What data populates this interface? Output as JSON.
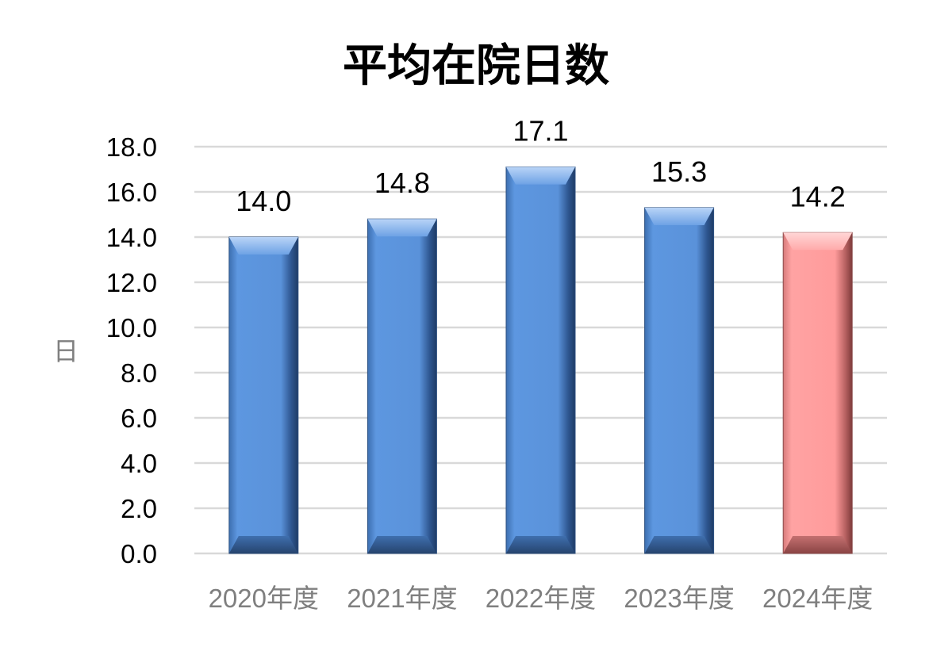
{
  "chart_data": {
    "type": "bar",
    "title": "平均在院日数",
    "ylabel": "日",
    "xlabel": "",
    "categories": [
      "2020年度",
      "2021年度",
      "2022年度",
      "2023年度",
      "2024年度"
    ],
    "values": [
      14.0,
      14.8,
      17.1,
      15.3,
      14.2
    ],
    "ylim": [
      0,
      18
    ],
    "yticks": [
      "0.0",
      "2.0",
      "4.0",
      "6.0",
      "8.0",
      "10.0",
      "12.0",
      "14.0",
      "16.0",
      "18.0"
    ],
    "data_labels": [
      "14.0",
      "14.8",
      "17.1",
      "15.3",
      "14.2"
    ],
    "grid": true,
    "legend": "none",
    "colors": {
      "default_bar": "#5b93dc",
      "highlight_bar": "#ff9e9e",
      "highlight_index": 4,
      "gridline": "#d9d9d9",
      "tick_text": "#000000",
      "category_text": "#7f7f7f"
    }
  }
}
